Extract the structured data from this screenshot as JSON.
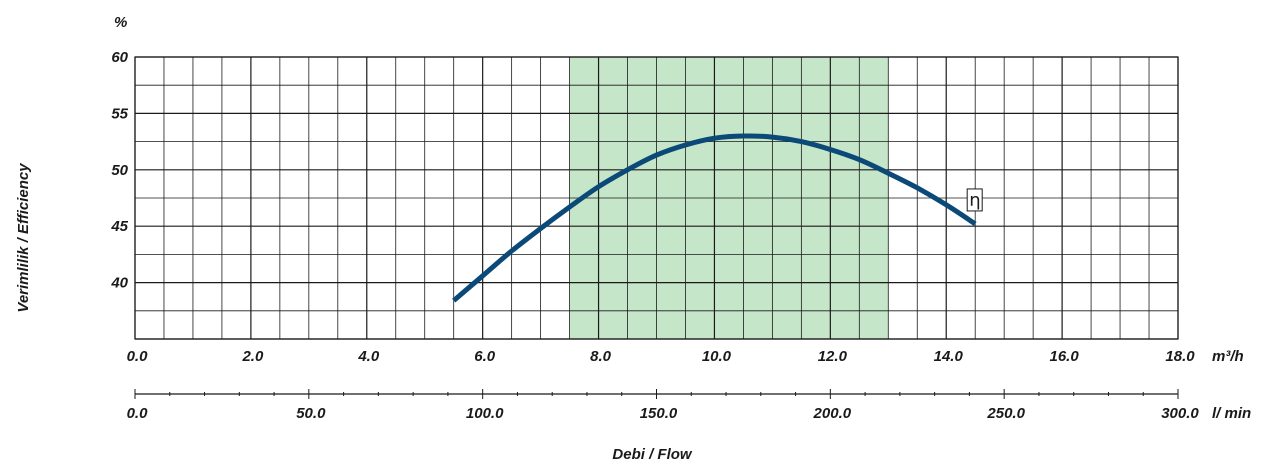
{
  "chart_data": {
    "type": "line",
    "title": "",
    "y_unit_label": "%",
    "ylabel": "Verimlilik / Efficiency",
    "xlabel": "Debi / Flow",
    "x_unit": "m³/h",
    "x2_unit": "l/ min",
    "xlim": [
      0,
      18
    ],
    "ylim": [
      35,
      60
    ],
    "y_ticks": [
      "60",
      "55",
      "50",
      "45",
      "40"
    ],
    "x_ticks": [
      "0.0",
      "2.0",
      "4.0",
      "6.0",
      "8.0",
      "10.0",
      "12.0",
      "14.0",
      "16.0",
      "18.0"
    ],
    "x2_ticks": [
      "0.0",
      "50.0",
      "100.0",
      "150.0",
      "200.0",
      "250.0",
      "300.0"
    ],
    "x2_range": [
      0,
      300
    ],
    "highlight_range": [
      7.5,
      13.0
    ],
    "highlight_color": "#c6e6c9",
    "grid": true,
    "series": [
      {
        "name": "η",
        "color": "#0b4a78",
        "x": [
          5.5,
          6.0,
          6.5,
          7.0,
          7.5,
          8.0,
          8.5,
          9.0,
          9.5,
          10.0,
          10.5,
          11.0,
          11.5,
          12.0,
          12.5,
          13.0,
          13.5,
          14.0,
          14.5
        ],
        "y": [
          38.4,
          40.6,
          42.8,
          44.8,
          46.7,
          48.5,
          50.0,
          51.3,
          52.2,
          52.8,
          53.0,
          52.9,
          52.5,
          51.8,
          50.9,
          49.7,
          48.4,
          46.9,
          45.2
        ]
      }
    ]
  }
}
